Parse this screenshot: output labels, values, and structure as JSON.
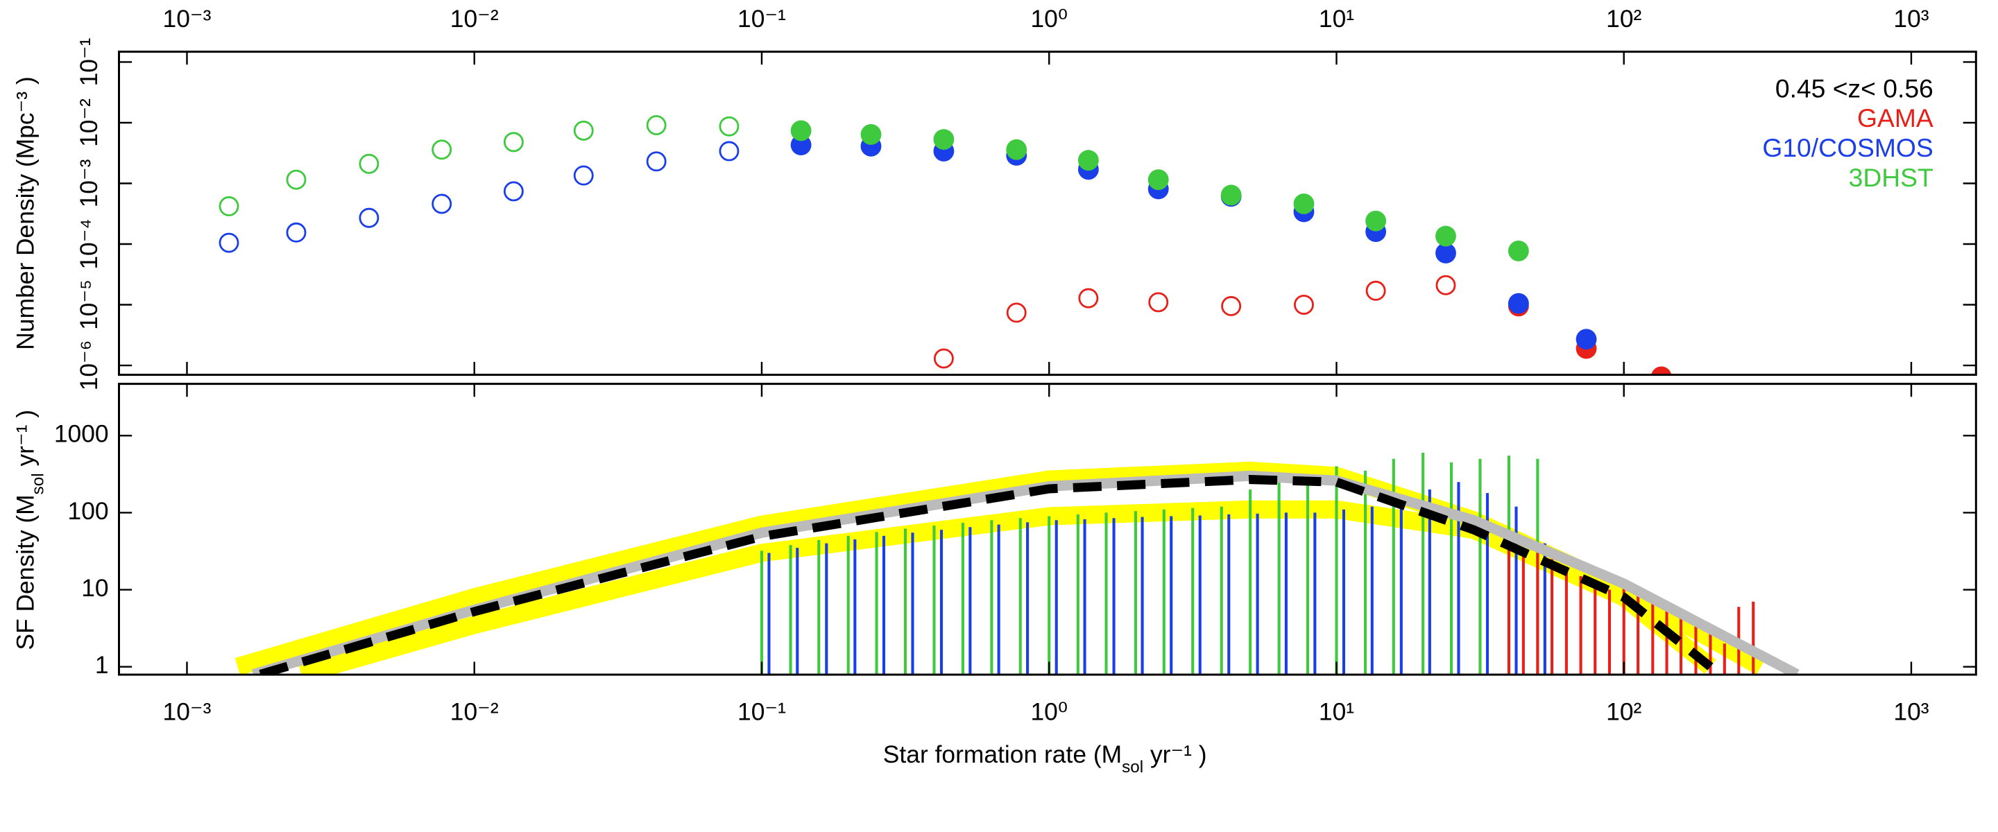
{
  "chart_data": [
    {
      "type": "scatter",
      "ylabel": "Number Density (Mpc⁻³ )",
      "xscale": "log",
      "yscale": "log",
      "xlim": [
        0.00058,
        1680
      ],
      "ylim": [
        7e-07,
        0.148
      ],
      "xticks": [
        {
          "value": 0.001,
          "label": "10⁻³"
        },
        {
          "value": 0.01,
          "label": "10⁻²"
        },
        {
          "value": 0.1,
          "label": "10⁻¹"
        },
        {
          "value": 1,
          "label": "10⁰"
        },
        {
          "value": 10,
          "label": "10¹"
        },
        {
          "value": 100,
          "label": "10²"
        },
        {
          "value": 1000,
          "label": "10³"
        }
      ],
      "yticks": [
        {
          "value": 0.1,
          "label": "10⁻¹"
        },
        {
          "value": 0.01,
          "label": "10⁻²"
        },
        {
          "value": 0.001,
          "label": "10⁻³"
        },
        {
          "value": 0.0001,
          "label": "10⁻⁴"
        },
        {
          "value": 1e-05,
          "label": "10⁻⁵"
        },
        {
          "value": 1e-06,
          "label": "10⁻⁶"
        }
      ],
      "legend_title": "0.45 <z< 0.56",
      "legend": [
        {
          "name": "GAMA",
          "color": "#e8201a"
        },
        {
          "name": "G10/COSMOS",
          "color": "#1a3ee8"
        },
        {
          "name": "3DHST",
          "color": "#3ec93e"
        }
      ],
      "series": [
        {
          "color": "#3ec93e",
          "marker": "open",
          "x": [
            0.0014,
            0.0024,
            0.0043,
            0.0077,
            0.0137,
            0.024,
            0.043,
            0.077
          ],
          "values": [
            0.00042,
            0.00115,
            0.0021,
            0.0036,
            0.0048,
            0.0074,
            0.0091,
            0.0087
          ]
        },
        {
          "color": "#1a3ee8",
          "marker": "open",
          "x": [
            0.0014,
            0.0024,
            0.0043,
            0.0077,
            0.0137,
            0.024,
            0.043,
            0.077
          ],
          "values": [
            0.000105,
            0.000155,
            0.00027,
            0.00046,
            0.00074,
            0.00135,
            0.0023,
            0.0034
          ]
        },
        {
          "color": "#e8201a",
          "marker": "open",
          "x": [
            0.43,
            0.77,
            1.37,
            2.4,
            4.3,
            7.7,
            13.7,
            24
          ],
          "values": [
            1.3e-06,
            7.4e-06,
            1.28e-05,
            1.1e-05,
            9.5e-06,
            1e-05,
            1.7e-05,
            2.1e-05
          ]
        },
        {
          "color": "#e8201a",
          "marker": "filled",
          "x": [
            43,
            74,
            135
          ],
          "values": [
            9.5e-06,
            1.9e-06,
            6.5e-07
          ]
        },
        {
          "color": "#1a3ee8",
          "marker": "filled",
          "x": [
            0.137,
            0.24,
            0.43,
            0.77,
            1.37,
            2.4,
            4.3,
            7.7,
            13.7,
            24,
            43,
            74
          ],
          "values": [
            0.0043,
            0.0041,
            0.0034,
            0.0029,
            0.0017,
            0.00081,
            0.00061,
            0.00034,
            0.00016,
            7.1e-05,
            1.05e-05,
            2.7e-06
          ]
        },
        {
          "color": "#3ec93e",
          "marker": "filled",
          "x": [
            0.137,
            0.24,
            0.43,
            0.77,
            1.37,
            2.4,
            4.3,
            7.7,
            13.7,
            24,
            43
          ],
          "values": [
            0.0074,
            0.0064,
            0.0053,
            0.0036,
            0.0024,
            0.00115,
            0.00064,
            0.00046,
            0.00024,
            0.000135,
            7.7e-05
          ]
        }
      ]
    },
    {
      "type": "bar+line",
      "ylabel": [
        "SF Density (M",
        "sol",
        " yr⁻¹ )"
      ],
      "xlabel": [
        "Star formation rate (M",
        "sol",
        " yr⁻¹ )"
      ],
      "xscale": "log",
      "yscale": "log",
      "xlim": [
        0.00058,
        1680
      ],
      "ylim": [
        0.79,
        4700
      ],
      "xticks": [
        {
          "value": 0.001,
          "label": "10⁻³"
        },
        {
          "value": 0.01,
          "label": "10⁻²"
        },
        {
          "value": 0.1,
          "label": "10⁻¹"
        },
        {
          "value": 1,
          "label": "10⁰"
        },
        {
          "value": 10,
          "label": "10¹"
        },
        {
          "value": 100,
          "label": "10²"
        },
        {
          "value": 1000,
          "label": "10³"
        }
      ],
      "yticks": [
        1,
        10,
        100,
        1000
      ],
      "series": [
        {
          "kind": "line",
          "color": "#ffff00",
          "width": 14,
          "x": [
            0.0015,
            0.01,
            0.1,
            1,
            5,
            10,
            30,
            100,
            300
          ],
          "values": [
            1,
            8,
            70,
            270,
            350,
            300,
            80,
            10,
            1
          ]
        },
        {
          "kind": "line",
          "color": "#ffff00",
          "width": 14,
          "x": [
            0.0025,
            0.01,
            0.1,
            1,
            5,
            10,
            30,
            100,
            200
          ],
          "values": [
            0.8,
            3.5,
            30,
            90,
            110,
            110,
            60,
            8,
            1
          ]
        },
        {
          "kind": "bar",
          "color": "#3ec93e",
          "x": [
            0.1,
            0.126,
            0.158,
            0.2,
            0.251,
            0.316,
            0.398,
            0.501,
            0.631,
            0.794,
            1,
            1.26,
            1.58,
            2,
            2.51,
            3.16,
            3.98,
            5.01,
            6.31,
            7.94,
            10,
            12.6,
            15.8,
            20,
            25.1,
            31.6,
            39.8,
            50.1
          ],
          "values": [
            32,
            38,
            44,
            50,
            56,
            62,
            68,
            74,
            80,
            85,
            90,
            95,
            100,
            105,
            110,
            115,
            120,
            200,
            300,
            250,
            400,
            350,
            500,
            600,
            450,
            500,
            550,
            500
          ]
        },
        {
          "kind": "bar",
          "color": "#1a3ee8",
          "x": [
            0.106,
            0.133,
            0.168,
            0.211,
            0.266,
            0.335,
            0.422,
            0.531,
            0.668,
            0.841,
            1.06,
            1.33,
            1.68,
            2.11,
            2.66,
            3.35,
            4.22,
            5.31,
            6.68,
            8.41,
            10.6,
            13.3,
            16.8,
            21.1,
            26.6,
            33.5,
            42.2,
            53.1
          ],
          "values": [
            30,
            35,
            40,
            45,
            50,
            55,
            60,
            65,
            70,
            75,
            80,
            82,
            85,
            88,
            90,
            92,
            95,
            97,
            100,
            100,
            110,
            120,
            150,
            200,
            250,
            180,
            120,
            40
          ]
        },
        {
          "kind": "bar",
          "color": "#e8201a",
          "x": [
            39.8,
            44.7,
            50.1,
            56.2,
            63.1,
            70.8,
            79.4,
            89.1,
            100,
            112,
            126,
            141,
            158,
            178,
            200,
            224,
            251,
            282
          ],
          "values": [
            40,
            35,
            30,
            25,
            20,
            15,
            12,
            10,
            12,
            9,
            8,
            6,
            5,
            4,
            3,
            2,
            6,
            7
          ]
        },
        {
          "kind": "line",
          "color": "#bbbbbb",
          "width": 8,
          "x": [
            0.0017,
            0.01,
            0.1,
            1,
            5,
            10,
            30,
            100,
            400
          ],
          "values": [
            0.8,
            5.5,
            55,
            220,
            300,
            260,
            80,
            12,
            0.8
          ]
        },
        {
          "kind": "line",
          "color": "#000000",
          "width": 7,
          "dash": true,
          "x": [
            0.0018,
            0.01,
            0.1,
            1,
            5,
            10,
            30,
            100,
            200
          ],
          "values": [
            0.8,
            5.2,
            49,
            204,
            270,
            250,
            60,
            8,
            1
          ]
        }
      ]
    }
  ]
}
